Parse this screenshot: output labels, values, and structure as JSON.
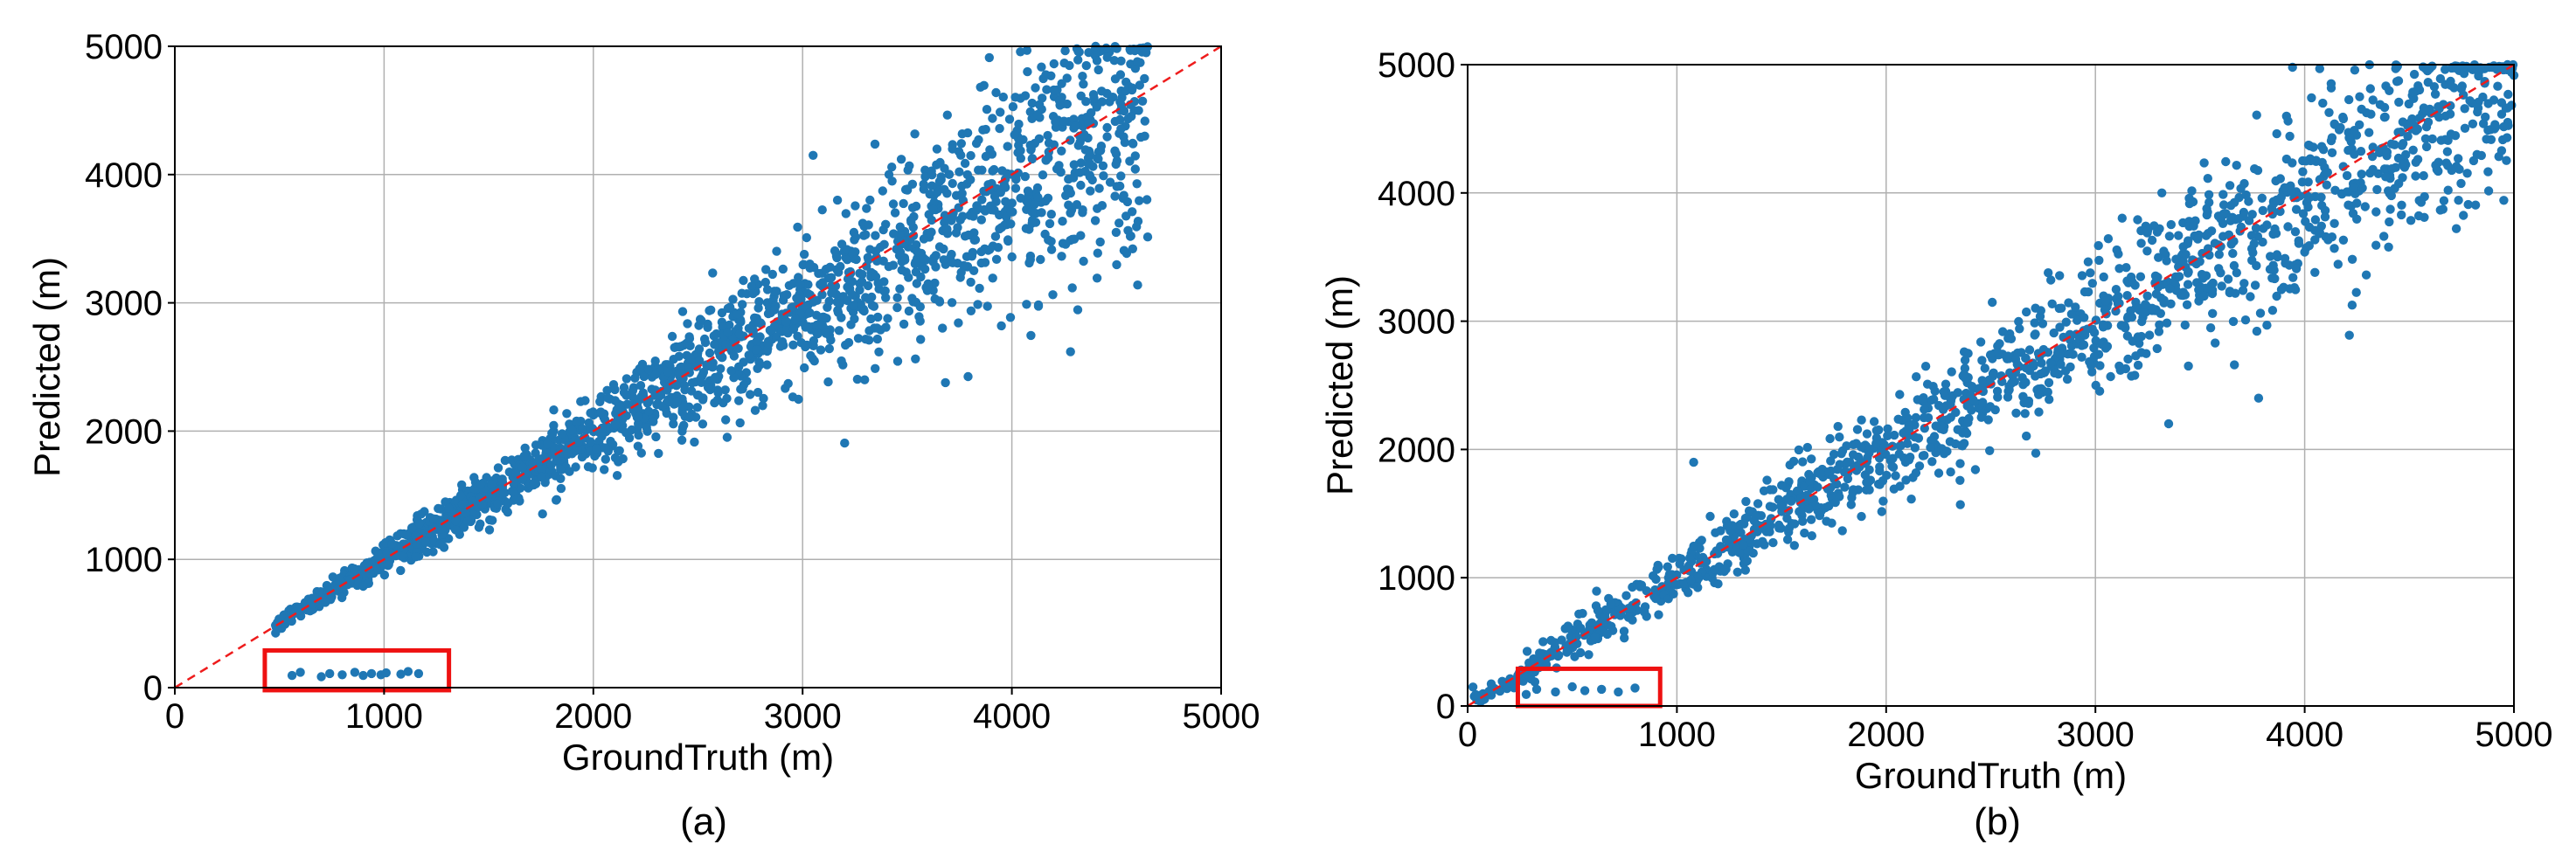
{
  "colors": {
    "points": "#1f77b4",
    "reference_line": "#ee1c1c",
    "highlight_box": "#ee1111"
  },
  "chart_data": [
    {
      "type": "scatter",
      "panel_label": "(a)",
      "xlabel": "GroundTruth (m)",
      "ylabel": "Predicted (m)",
      "xlim": [
        0,
        5000
      ],
      "ylim": [
        0,
        5000
      ],
      "xticks": [
        "0",
        "1000",
        "2000",
        "3000",
        "4000",
        "5000"
      ],
      "yticks": [
        "0",
        "1000",
        "2000",
        "3000",
        "4000",
        "5000"
      ],
      "grid": true,
      "reference_line": "y = x",
      "highlight_region": {
        "x": [
          430,
          1310
        ],
        "y": [
          -20,
          290
        ]
      },
      "main_points": {
        "count": 1900,
        "seed": 11,
        "x_range": [
          480,
          4650
        ],
        "scatter_bias": "under-prediction growing with x",
        "slope_hint": 0.95
      },
      "outlier_points": [
        {
          "x": 560,
          "y": 95
        },
        {
          "x": 600,
          "y": 120
        },
        {
          "x": 700,
          "y": 85
        },
        {
          "x": 740,
          "y": 110
        },
        {
          "x": 800,
          "y": 100
        },
        {
          "x": 860,
          "y": 120
        },
        {
          "x": 900,
          "y": 95
        },
        {
          "x": 940,
          "y": 110
        },
        {
          "x": 985,
          "y": 100
        },
        {
          "x": 1010,
          "y": 115
        },
        {
          "x": 1080,
          "y": 105
        },
        {
          "x": 1115,
          "y": 125
        },
        {
          "x": 1165,
          "y": 110
        }
      ],
      "notable_points": [
        {
          "x": 3050,
          "y": 4150
        },
        {
          "x": 4400,
          "y": 5000
        },
        {
          "x": 4600,
          "y": 4880
        },
        {
          "x": 4540,
          "y": 4250
        },
        {
          "x": 4280,
          "y": 3700
        }
      ]
    },
    {
      "type": "scatter",
      "panel_label": "(b)",
      "xlabel": "GroundTruth (m)",
      "ylabel": "Predicted (m)",
      "xlim": [
        0,
        5000
      ],
      "ylim": [
        0,
        5000
      ],
      "xticks": [
        "0",
        "1000",
        "2000",
        "3000",
        "4000",
        "5000"
      ],
      "yticks": [
        "0",
        "1000",
        "2000",
        "3000",
        "4000",
        "5000"
      ],
      "grid": true,
      "reference_line": "y = x",
      "highlight_region": {
        "x": [
          240,
          920
        ],
        "y": [
          0,
          290
        ]
      },
      "main_points": {
        "count": 1500,
        "seed": 29,
        "x_range": [
          20,
          5000
        ],
        "scatter_bias": "spread growing with x",
        "slope_hint": 0.96
      },
      "outlier_points": [
        {
          "x": 280,
          "y": 90
        },
        {
          "x": 330,
          "y": 130
        },
        {
          "x": 420,
          "y": 110
        },
        {
          "x": 500,
          "y": 150
        },
        {
          "x": 560,
          "y": 120
        },
        {
          "x": 640,
          "y": 130
        },
        {
          "x": 720,
          "y": 110
        },
        {
          "x": 800,
          "y": 140
        }
      ],
      "notable_points": [
        {
          "x": 1080,
          "y": 1900
        },
        {
          "x": 3350,
          "y": 2200
        },
        {
          "x": 3780,
          "y": 2400
        },
        {
          "x": 4950,
          "y": 4960
        },
        {
          "x": 4800,
          "y": 4700
        }
      ]
    }
  ]
}
